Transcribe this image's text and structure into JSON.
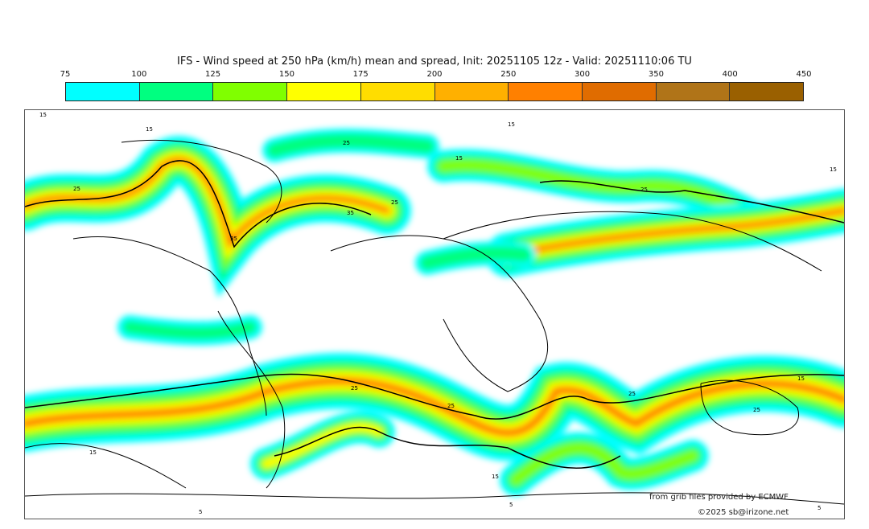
{
  "title": "IFS - Wind speed at 250 hPa (km/h) mean and spread, Init: 20251105 12z - Valid: 20251110:06 TU",
  "legend": {
    "ticks": [
      "75",
      "100",
      "125",
      "150",
      "175",
      "200",
      "250",
      "300",
      "350",
      "400",
      "450"
    ],
    "colors": [
      "#00ffff",
      "#00ff80",
      "#80ff00",
      "#ffff00",
      "#ffdd00",
      "#ffb000",
      "#ff8000",
      "#e06c00",
      "#b07418",
      "#9a6000"
    ]
  },
  "map": {
    "contour_labels": [
      "15",
      "15",
      "15",
      "25",
      "15",
      "25",
      "25",
      "35",
      "35",
      "25",
      "15",
      "15",
      "25",
      "25",
      "25",
      "25",
      "15",
      "15",
      "5",
      "5",
      "5"
    ]
  },
  "credits": {
    "source": "from grib files provided by ECMWF",
    "copyright": "©2025 sb@irizone.net"
  }
}
